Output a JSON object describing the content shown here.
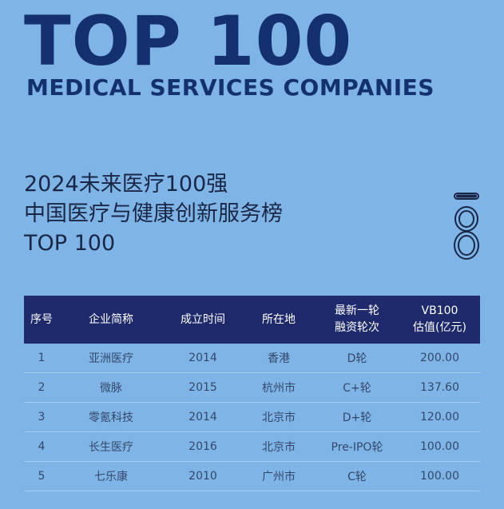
{
  "header": {
    "big_title": "TOP 100",
    "subtitle": "MEDICAL SERVICES COMPANIES"
  },
  "heading": {
    "line1": "2024未来医疗100强",
    "line2": "中国医疗与健康创新服务榜",
    "line3": "TOP 100"
  },
  "badge": {
    "icon": "number-18-outline-icon"
  },
  "table": {
    "headers": {
      "index": "序号",
      "name": "企业简称",
      "founded": "成立时间",
      "location": "所在地",
      "round_l1": "最新一轮",
      "round_l2": "融资轮次",
      "value_l1": "VB100",
      "value_l2": "估值(亿元)"
    },
    "rows": [
      {
        "index": "1",
        "name": "亚洲医疗",
        "founded": "2014",
        "location": "香港",
        "round": "D轮",
        "value": "200.00"
      },
      {
        "index": "2",
        "name": "微脉",
        "founded": "2015",
        "location": "杭州市",
        "round": "C+轮",
        "value": "137.60"
      },
      {
        "index": "3",
        "name": "零氪科技",
        "founded": "2014",
        "location": "北京市",
        "round": "D+轮",
        "value": "120.00"
      },
      {
        "index": "4",
        "name": "长生医疗",
        "founded": "2016",
        "location": "北京市",
        "round": "Pre-IPO轮",
        "value": "100.00"
      },
      {
        "index": "5",
        "name": "七乐康",
        "founded": "2010",
        "location": "广州市",
        "round": "C轮",
        "value": "100.00"
      }
    ]
  },
  "colors": {
    "background": "#7fb5e6",
    "title": "#15306e",
    "table_header": "#1f2a6c",
    "row_text": "#34476b"
  }
}
